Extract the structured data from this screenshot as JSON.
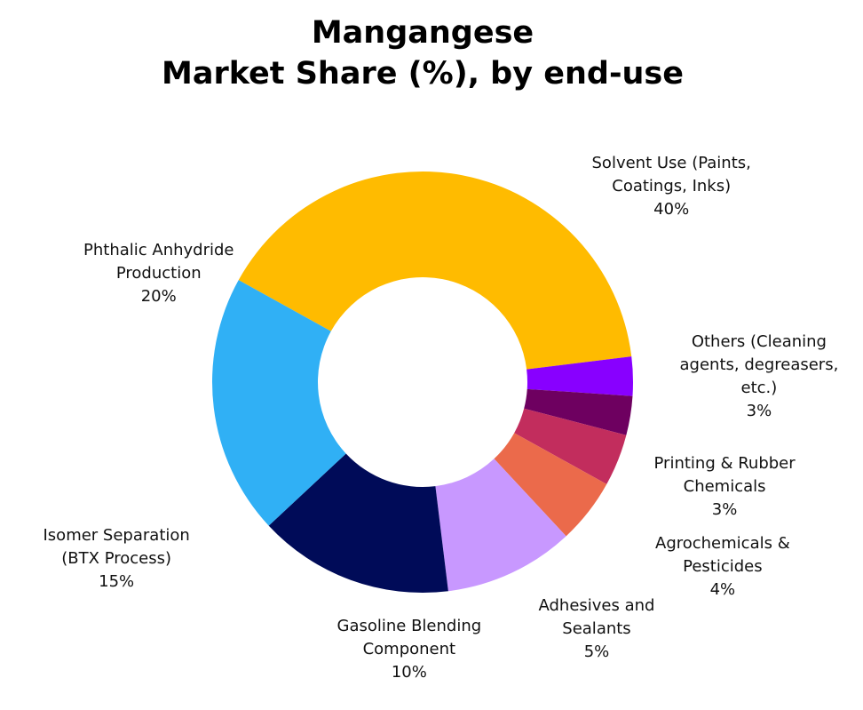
{
  "chart_data": {
    "type": "pie",
    "variant": "donut",
    "title": "Mangangese\nMarket Share (%), by end-use",
    "title_lines": [
      "Mangangese",
      "Market Share (%), by end-use"
    ],
    "value_unit": "%",
    "legend": "none",
    "slices": [
      {
        "name": "Solvent Use (Paints, Coatings, Inks)",
        "label_lines": [
          "Solvent Use (Paints,",
          "Coatings, Inks)"
        ],
        "value": 40,
        "value_label": "40%",
        "color": "#FFBB00"
      },
      {
        "name": "Others (Cleaning agents, degreasers, etc.)",
        "label_lines": [
          "Others (Cleaning",
          "agents, degreasers,",
          "etc.)"
        ],
        "value": 3,
        "value_label": "3%",
        "color": "#8800FF"
      },
      {
        "name": "Printing & Rubber Chemicals",
        "label_lines": [
          "Printing & Rubber",
          "Chemicals"
        ],
        "value": 3,
        "value_label": "3%",
        "color": "#6E0060"
      },
      {
        "name": "Agrochemicals & Pesticides",
        "label_lines": [
          "Agrochemicals &",
          "Pesticides"
        ],
        "value": 4,
        "value_label": "4%",
        "color": "#C22D5D"
      },
      {
        "name": "Adhesives and Sealants",
        "label_lines": [
          "Adhesives and",
          "Sealants"
        ],
        "value": 5,
        "value_label": "5%",
        "color": "#EB6A4B"
      },
      {
        "name": "Gasoline Blending Component",
        "label_lines": [
          "Gasoline Blending",
          "Component"
        ],
        "value": 10,
        "value_label": "10%",
        "color": "#C898FF"
      },
      {
        "name": "Isomer Separation (BTX Process)",
        "label_lines": [
          "Isomer Separation",
          "(BTX Process)"
        ],
        "value": 15,
        "value_label": "15%",
        "color": "#000B58"
      },
      {
        "name": "Phthalic Anhydride Production",
        "label_lines": [
          "Phthalic Anhydride",
          "Production"
        ],
        "value": 20,
        "value_label": "20%",
        "color": "#30B0F5"
      }
    ]
  }
}
